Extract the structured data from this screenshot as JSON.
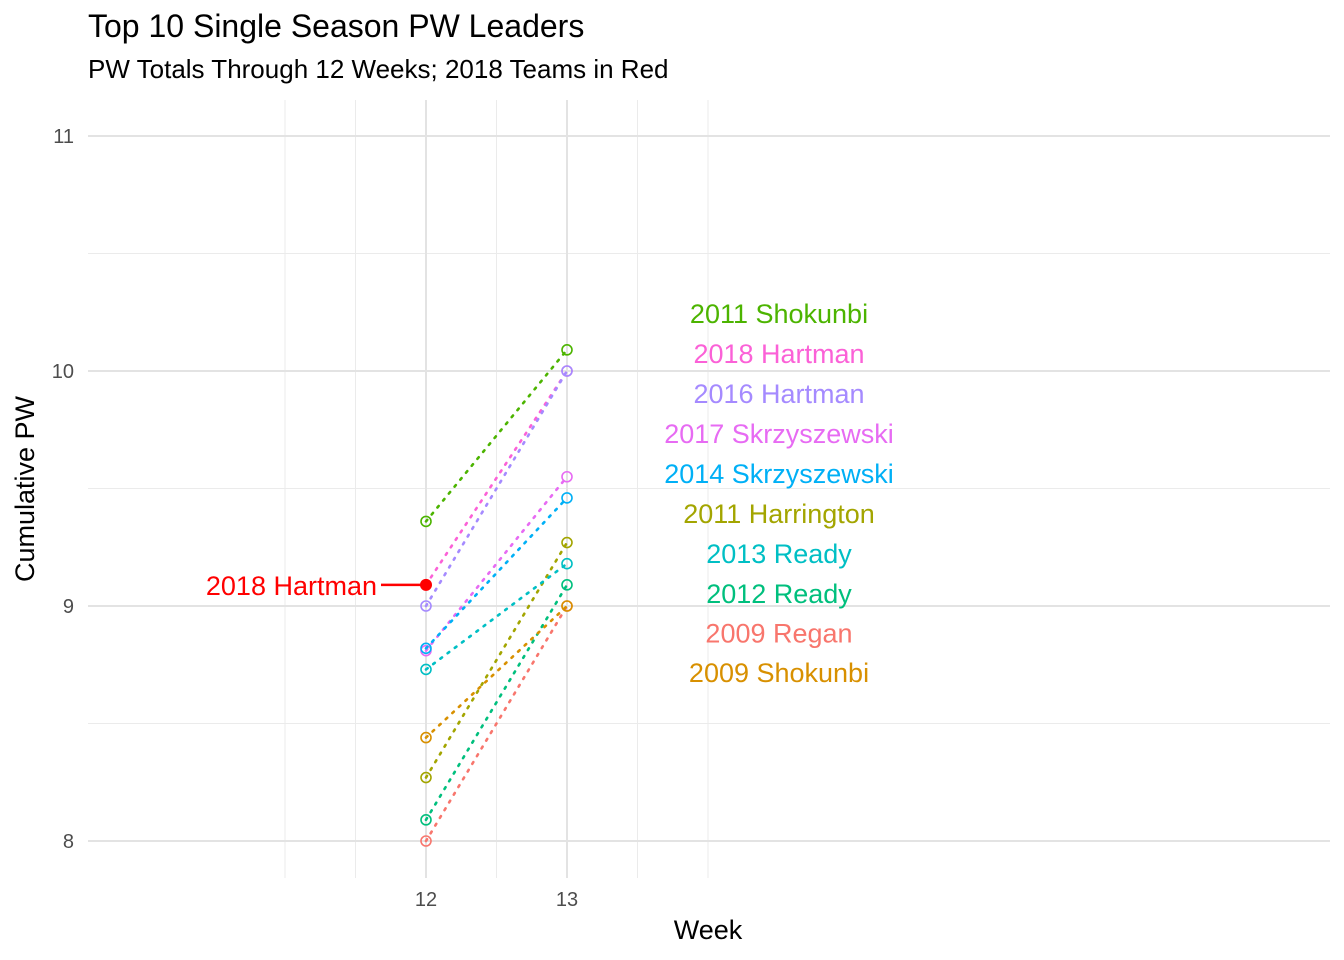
{
  "chart_data": {
    "type": "line",
    "title": "Top 10 Single Season PW Leaders",
    "subtitle": "PW Totals Through 12 Weeks; 2018 Teams in Red",
    "xlabel": "Week",
    "ylabel": "Cumulative PW",
    "x_ticks": [
      12,
      13
    ],
    "y_ticks": [
      8,
      9,
      10,
      11
    ],
    "grid": true,
    "series": [
      {
        "name": "2011 Shokunbi",
        "color": "#4cb400",
        "x": [
          12,
          13
        ],
        "values": [
          9.36,
          10.09
        ]
      },
      {
        "name": "2018 Hartman",
        "color": "#fb61d7",
        "x": [
          12,
          13
        ],
        "values": [
          9.09,
          10.0
        ]
      },
      {
        "name": "2016 Hartman",
        "color": "#a58aff",
        "x": [
          12,
          13
        ],
        "values": [
          9.0,
          10.0
        ]
      },
      {
        "name": "2017 Skrzyszewski",
        "color": "#e76bf3",
        "x": [
          12,
          13
        ],
        "values": [
          8.81,
          9.55
        ]
      },
      {
        "name": "2014 Skrzyszewski",
        "color": "#00b0f6",
        "x": [
          12,
          13
        ],
        "values": [
          8.82,
          9.46
        ]
      },
      {
        "name": "2011 Harrington",
        "color": "#a3a500",
        "x": [
          12,
          13
        ],
        "values": [
          8.27,
          9.27
        ]
      },
      {
        "name": "2013 Ready",
        "color": "#00bfc4",
        "x": [
          12,
          13
        ],
        "values": [
          8.73,
          9.18
        ]
      },
      {
        "name": "2012 Ready",
        "color": "#00bf7d",
        "x": [
          12,
          13
        ],
        "values": [
          8.09,
          9.09
        ]
      },
      {
        "name": "2009 Regan",
        "color": "#f8766d",
        "x": [
          12,
          13
        ],
        "values": [
          8.0,
          9.0
        ]
      },
      {
        "name": "2009 Shokunbi",
        "color": "#d89000",
        "x": [
          12,
          13
        ],
        "values": [
          8.44,
          9.0
        ]
      }
    ],
    "highlight": {
      "label": "2018 Hartman",
      "x": 12,
      "y": 9.09,
      "color": "#ff0000"
    }
  }
}
